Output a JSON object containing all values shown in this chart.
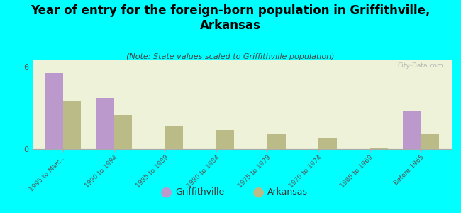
{
  "title": "Year of entry for the foreign-born population in Griffithville,\nArkansas",
  "subtitle": "(Note: State values scaled to Griffithville population)",
  "categories": [
    "1995 to Marc...",
    "1990 to 1994",
    "1985 to 1989",
    "1980 to 1984",
    "1975 to 1979",
    "1970 to 1974",
    "1965 to 1969",
    "Before 1965"
  ],
  "griffithville_values": [
    5.5,
    3.7,
    0,
    0,
    0,
    0,
    0,
    2.8
  ],
  "arkansas_values": [
    3.5,
    2.5,
    1.7,
    1.4,
    1.1,
    0.85,
    0.12,
    1.1
  ],
  "griffithville_color": "#bb99cc",
  "arkansas_color": "#bbbb88",
  "background_color": "#00ffff",
  "plot_bg_color": "#eef2d8",
  "ylim": [
    0,
    6.5
  ],
  "bar_width": 0.35,
  "watermark": "City-Data.com",
  "title_fontsize": 12,
  "subtitle_fontsize": 8
}
